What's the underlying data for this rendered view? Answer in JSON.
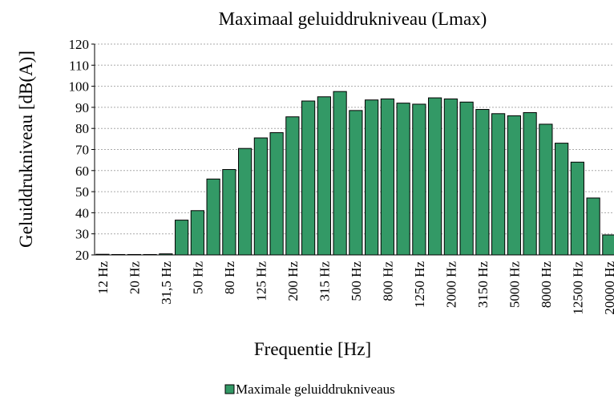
{
  "chart_data": {
    "type": "bar",
    "title": "Maximaal geluiddrukniveau (Lmax)",
    "x_label": "Frequentie [Hz]",
    "y_label": "Geluiddrukniveau [dB(A)]",
    "categories": [
      "12 Hz",
      null,
      "20 Hz",
      null,
      "31,5 Hz",
      null,
      "50 Hz",
      null,
      "80 Hz",
      null,
      "125 Hz",
      null,
      "200 Hz",
      null,
      "315 Hz",
      null,
      "500 Hz",
      null,
      "800 Hz",
      null,
      "1250 Hz",
      null,
      "2000 Hz",
      null,
      "3150 Hz",
      null,
      "5000 Hz",
      null,
      "8000 Hz",
      null,
      "12500 Hz",
      null,
      "20000 Hz"
    ],
    "series": [
      {
        "name": "Maximale geluiddrukniveaus",
        "color": "#339966",
        "values": [
          20.3,
          20.2,
          20.2,
          20.2,
          20.5,
          36.5,
          41,
          56,
          60.5,
          70.5,
          75.5,
          78,
          85.5,
          93,
          95,
          97.5,
          88.5,
          93.5,
          94,
          92,
          91.5,
          94.5,
          94,
          92.5,
          89,
          87,
          86,
          87.5,
          82,
          73,
          64,
          47,
          29.5
        ]
      }
    ],
    "ylim": [
      20,
      120
    ],
    "yticks": [
      20,
      30,
      40,
      50,
      60,
      70,
      80,
      90,
      100,
      110,
      120
    ],
    "grid": true,
    "legend": "bottom"
  }
}
